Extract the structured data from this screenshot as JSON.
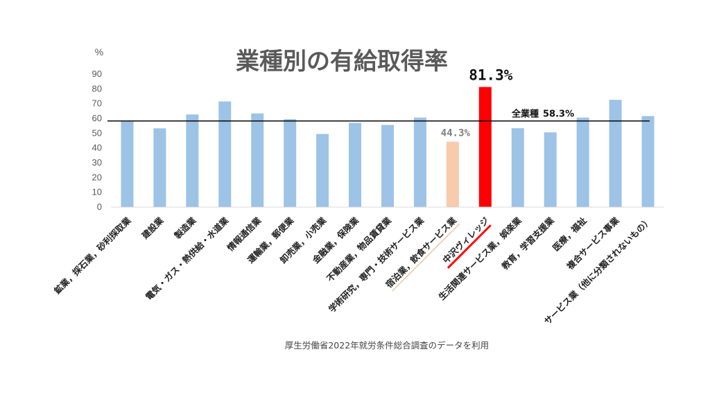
{
  "chart_data": {
    "type": "bar",
    "title": "業種別の有給取得率",
    "ylabel": "%",
    "ylim": [
      0,
      90
    ],
    "yticks": [
      0,
      10,
      20,
      30,
      40,
      50,
      60,
      70,
      80,
      90
    ],
    "categories": [
      "鉱業，採石業，砂利採取業",
      "建設業",
      "製造業",
      "電気・ガス・熱供給・水道業",
      "情報通信業",
      "運輸業，郵便業",
      "卸売業，小売業",
      "金融業，保険業",
      "不動産業，物品賃貸業",
      "学術研究，専門・技術サービス業",
      "宿泊業，飲食サービス業",
      "中沢ヴィレッジ",
      "生活関連サービス業，娯楽業",
      "教育，学習支援業",
      "医療，福祉",
      "複合サービス事業",
      "サービス業（他に分類されないもの）"
    ],
    "values": [
      58.0,
      53.3,
      62.7,
      71.5,
      63.4,
      59.5,
      49.5,
      57.0,
      55.6,
      60.6,
      44.3,
      81.3,
      53.4,
      50.6,
      60.6,
      72.6,
      61.6
    ],
    "reference_line": {
      "label": "全業種",
      "value": 58.3,
      "value_label": "58.3%"
    },
    "annotations": [
      {
        "category": "宿泊業，飲食サービス業",
        "text": "44.3%"
      },
      {
        "category": "中沢ヴィレッジ",
        "text": "81.3%"
      }
    ],
    "colors": {
      "default_bar": "#9dc3e6",
      "lodging_bar": "#f8cbad",
      "highlight_bar": "#ff0000",
      "reference_line": "#000000",
      "axis": "#d9d9d9"
    }
  },
  "source_note": "厚生労働省2022年就労条件総合調査のデータを利用"
}
